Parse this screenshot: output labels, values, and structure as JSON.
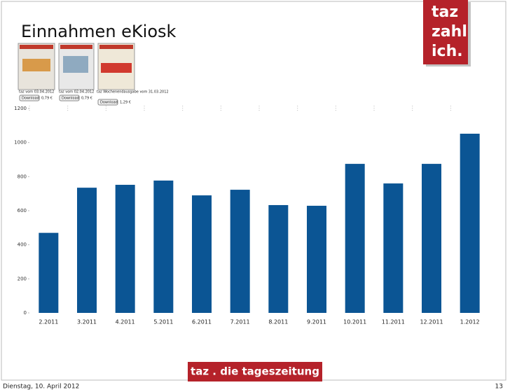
{
  "chart_data": {
    "type": "bar",
    "title": "Einnahmen eKiosk",
    "categories": [
      "2.2011",
      "3.2011",
      "4.2011",
      "5.2011",
      "6.2011",
      "7.2011",
      "8.2011",
      "9.2011",
      "10.2011",
      "11.2011",
      "12.2011",
      "1.2012"
    ],
    "values": [
      470,
      735,
      752,
      777,
      690,
      723,
      633,
      629,
      875,
      760,
      875,
      1052
    ],
    "color": "#0b5594",
    "ylim": [
      0,
      1200
    ],
    "yticks": [
      0,
      200,
      400,
      600,
      800,
      1000,
      1200
    ],
    "grid": false
  },
  "slide": {
    "logo_lines": [
      "taz",
      "zahl",
      "ich."
    ],
    "offers": [
      {
        "caption": "taz vom 03.04.2012",
        "button": "Download",
        "price": "0,79 €"
      },
      {
        "caption": "taz vom 02.04.2012",
        "button": "Download",
        "price": "0,79 €"
      },
      {
        "caption": "taz Wochenendausgabe vom 31.03.2012",
        "button": "Download",
        "price": "1,29 €"
      }
    ],
    "footer_logo": "taz . die tageszeitung",
    "date": "Dienstag, 10. April 2012",
    "page": "13"
  }
}
